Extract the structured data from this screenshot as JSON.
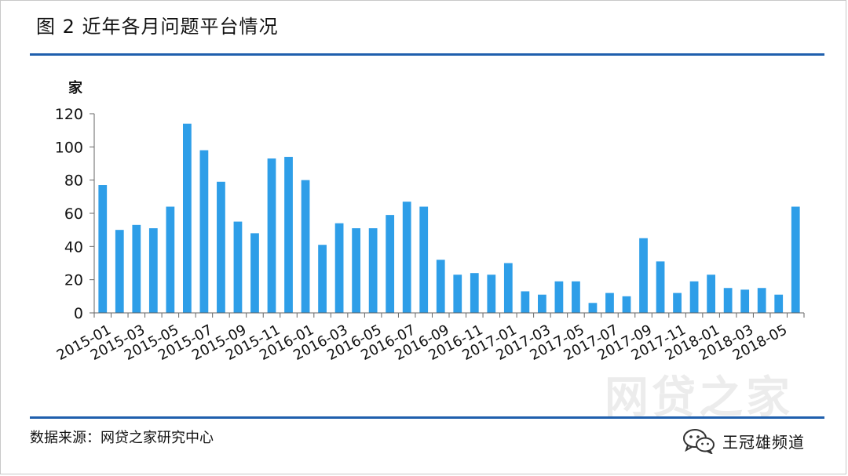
{
  "title": "图 2  近年各月问题平台情况",
  "source": "数据来源：网贷之家研究中心",
  "brand": {
    "name": "王冠雄频道",
    "icon": "wechat-icon",
    "watermark": "网贷之家"
  },
  "colors": {
    "bar": "#2e9ee8",
    "rule": "#1f5fad"
  },
  "chart_data": {
    "type": "bar",
    "ylabel": "家",
    "ylim": [
      0,
      120
    ],
    "yticks": [
      0,
      20,
      40,
      60,
      80,
      100,
      120
    ],
    "categories": [
      "2015-01",
      "2015-02",
      "2015-03",
      "2015-04",
      "2015-05",
      "2015-06",
      "2015-07",
      "2015-08",
      "2015-09",
      "2015-10",
      "2015-11",
      "2015-12",
      "2016-01",
      "2016-02",
      "2016-03",
      "2016-04",
      "2016-05",
      "2016-06",
      "2016-07",
      "2016-08",
      "2016-09",
      "2016-10",
      "2016-11",
      "2016-12",
      "2017-01",
      "2017-02",
      "2017-03",
      "2017-04",
      "2017-05",
      "2017-06",
      "2017-07",
      "2017-08",
      "2017-09",
      "2017-10",
      "2017-11",
      "2017-12",
      "2018-01",
      "2018-02",
      "2018-03",
      "2018-04",
      "2018-05",
      "2018-06"
    ],
    "tick_labels": [
      "2015-01",
      "2015-03",
      "2015-05",
      "2015-07",
      "2015-09",
      "2015-11",
      "2016-01",
      "2016-03",
      "2016-05",
      "2016-07",
      "2016-09",
      "2016-11",
      "2017-01",
      "2017-03",
      "2017-05",
      "2017-07",
      "2017-09",
      "2017-11",
      "2018-01",
      "2018-03",
      "2018-05"
    ],
    "values": [
      77,
      50,
      53,
      51,
      64,
      114,
      98,
      79,
      55,
      48,
      93,
      94,
      80,
      41,
      54,
      51,
      51,
      59,
      67,
      64,
      32,
      23,
      24,
      23,
      30,
      13,
      11,
      19,
      19,
      6,
      12,
      10,
      45,
      31,
      12,
      19,
      23,
      15,
      14,
      15,
      11,
      64
    ],
    "grid": false
  }
}
